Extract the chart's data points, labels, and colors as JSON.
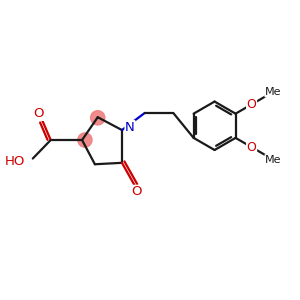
{
  "background_color": "#ffffff",
  "bond_color": "#1a1a1a",
  "N_color": "#0000cc",
  "O_color": "#cc0000",
  "highlight_color": "#f08080",
  "lw": 1.6,
  "fs": 8.5,
  "xlim": [
    0,
    10
  ],
  "ylim": [
    0,
    10
  ]
}
